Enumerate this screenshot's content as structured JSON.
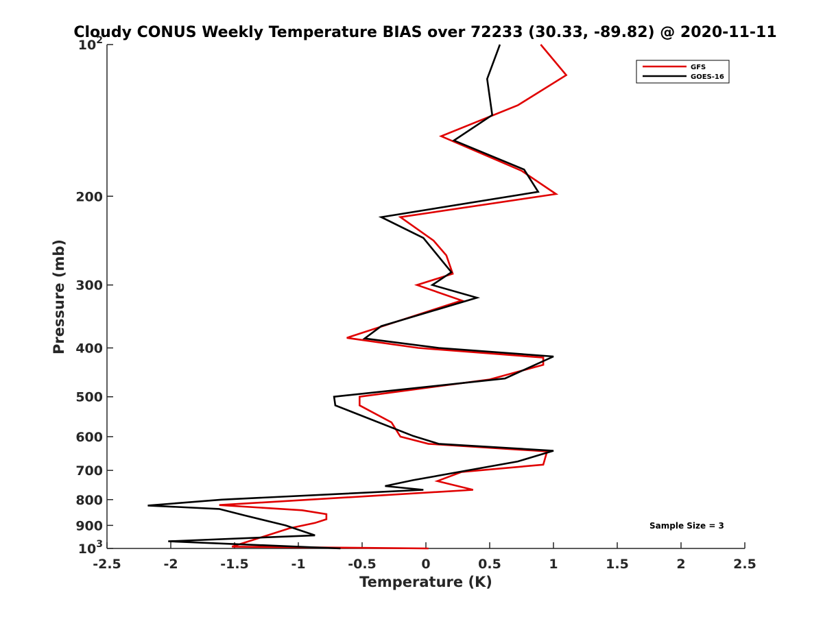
{
  "chart_data": {
    "type": "line",
    "title": "Cloudy CONUS Weekly Temperature BIAS over 72233 (30.33, -89.82) @ 2020-11-11",
    "xlabel": "Temperature (K)",
    "ylabel": "Pressure (mb)",
    "xlim": [
      -2.5,
      2.5
    ],
    "ylim": [
      100,
      1000
    ],
    "yscale": "log",
    "y_reversed": true,
    "x_ticks": [
      -2.5,
      -2,
      -1.5,
      -1,
      -0.5,
      0,
      0.5,
      1,
      1.5,
      2,
      2.5
    ],
    "x_tick_labels": [
      "-2.5",
      "-2",
      "-1.5",
      "-1",
      "-0.5",
      "0",
      "0.5",
      "1",
      "1.5",
      "2",
      "2.5"
    ],
    "y_ticks": [
      {
        "value": 100,
        "label": "10",
        "sup": "2"
      },
      {
        "value": 200,
        "label": "200",
        "sup": ""
      },
      {
        "value": 300,
        "label": "300",
        "sup": ""
      },
      {
        "value": 400,
        "label": "400",
        "sup": ""
      },
      {
        "value": 500,
        "label": "500",
        "sup": ""
      },
      {
        "value": 600,
        "label": "600",
        "sup": ""
      },
      {
        "value": 700,
        "label": "700",
        "sup": ""
      },
      {
        "value": 800,
        "label": "800",
        "sup": ""
      },
      {
        "value": 900,
        "label": "900",
        "sup": ""
      },
      {
        "value": 1000,
        "label": "10",
        "sup": "3"
      }
    ],
    "legend_position": "top-right",
    "grid": false,
    "series": [
      {
        "name": "GFS",
        "color": "#e00000",
        "points": [
          {
            "t": 0.9,
            "p": 100
          },
          {
            "t": 1.1,
            "p": 115
          },
          {
            "t": 0.72,
            "p": 132
          },
          {
            "t": 0.12,
            "p": 152
          },
          {
            "t": 0.75,
            "p": 178
          },
          {
            "t": 1.02,
            "p": 198
          },
          {
            "t": -0.2,
            "p": 220
          },
          {
            "t": 0.06,
            "p": 245
          },
          {
            "t": 0.16,
            "p": 262
          },
          {
            "t": 0.21,
            "p": 285
          },
          {
            "t": -0.07,
            "p": 300
          },
          {
            "t": 0.28,
            "p": 322
          },
          {
            "t": -0.62,
            "p": 382
          },
          {
            "t": -0.06,
            "p": 400
          },
          {
            "t": 0.92,
            "p": 418
          },
          {
            "t": 0.92,
            "p": 432
          },
          {
            "t": 0.5,
            "p": 462
          },
          {
            "t": -0.52,
            "p": 500
          },
          {
            "t": -0.52,
            "p": 520
          },
          {
            "t": -0.27,
            "p": 562
          },
          {
            "t": -0.2,
            "p": 600
          },
          {
            "t": 0.02,
            "p": 620
          },
          {
            "t": 0.95,
            "p": 642
          },
          {
            "t": 0.92,
            "p": 682
          },
          {
            "t": 0.28,
            "p": 705
          },
          {
            "t": 0.09,
            "p": 735
          },
          {
            "t": 0.37,
            "p": 765
          },
          {
            "t": -1.62,
            "p": 820
          },
          {
            "t": -0.97,
            "p": 840
          },
          {
            "t": -0.78,
            "p": 855
          },
          {
            "t": -0.78,
            "p": 875
          },
          {
            "t": -0.87,
            "p": 890
          },
          {
            "t": -1.07,
            "p": 912
          },
          {
            "t": -1.52,
            "p": 992
          },
          {
            "t": 0.02,
            "p": 1000
          }
        ]
      },
      {
        "name": "GOES-16",
        "color": "#000000",
        "points": [
          {
            "t": 0.58,
            "p": 100
          },
          {
            "t": 0.48,
            "p": 117
          },
          {
            "t": 0.52,
            "p": 138
          },
          {
            "t": 0.22,
            "p": 155
          },
          {
            "t": 0.77,
            "p": 177
          },
          {
            "t": 0.88,
            "p": 196
          },
          {
            "t": -0.35,
            "p": 220
          },
          {
            "t": -0.02,
            "p": 242
          },
          {
            "t": 0.2,
            "p": 283
          },
          {
            "t": 0.05,
            "p": 300
          },
          {
            "t": 0.4,
            "p": 318
          },
          {
            "t": -0.35,
            "p": 362
          },
          {
            "t": -0.48,
            "p": 383
          },
          {
            "t": 0.1,
            "p": 400
          },
          {
            "t": 1.0,
            "p": 416
          },
          {
            "t": 0.62,
            "p": 460
          },
          {
            "t": -0.72,
            "p": 500
          },
          {
            "t": -0.71,
            "p": 520
          },
          {
            "t": -0.1,
            "p": 598
          },
          {
            "t": 0.1,
            "p": 620
          },
          {
            "t": 1.0,
            "p": 640
          },
          {
            "t": 0.72,
            "p": 672
          },
          {
            "t": -0.1,
            "p": 732
          },
          {
            "t": -0.32,
            "p": 752
          },
          {
            "t": -0.02,
            "p": 765
          },
          {
            "t": -1.6,
            "p": 800
          },
          {
            "t": -2.18,
            "p": 822
          },
          {
            "t": -1.62,
            "p": 835
          },
          {
            "t": -1.42,
            "p": 860
          },
          {
            "t": -1.1,
            "p": 900
          },
          {
            "t": -0.87,
            "p": 942
          },
          {
            "t": -2.02,
            "p": 968
          },
          {
            "t": -0.67,
            "p": 1000
          }
        ]
      }
    ],
    "annotations": [
      {
        "text": "Sample Size = 3",
        "position": "bottom-right"
      }
    ]
  }
}
